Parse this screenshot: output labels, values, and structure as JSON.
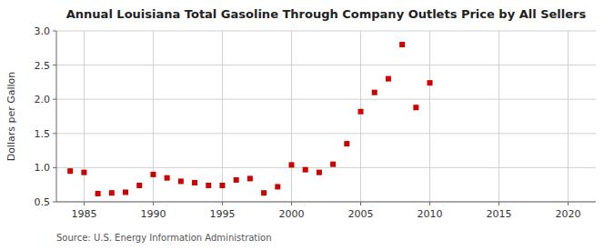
{
  "chart_data": {
    "type": "scatter",
    "title": "Annual Louisiana Total Gasoline Through Company Outlets Price by All Sellers",
    "y_label": "Dollars per Gallon",
    "annotations": [
      "Source: U.S. Energy Information Administration"
    ],
    "x": [
      1984,
      1985,
      1986,
      1987,
      1988,
      1989,
      1990,
      1991,
      1992,
      1993,
      1994,
      1995,
      1996,
      1997,
      1998,
      1999,
      2000,
      2001,
      2002,
      2003,
      2004,
      2005,
      2006,
      2007,
      2008,
      2009,
      2010
    ],
    "values": [
      0.95,
      0.93,
      0.62,
      0.63,
      0.64,
      0.74,
      0.9,
      0.85,
      0.8,
      0.78,
      0.74,
      0.74,
      0.82,
      0.84,
      0.63,
      0.72,
      1.04,
      0.97,
      0.93,
      1.05,
      1.35,
      1.82,
      2.1,
      2.3,
      2.8,
      1.88,
      2.24
    ],
    "color": "#cc0000",
    "marker": "square",
    "xlim": [
      1983,
      2022
    ],
    "ylim": [
      0.5,
      3.0
    ],
    "xticks": [
      1985,
      1990,
      1995,
      2000,
      2005,
      2010,
      2015,
      2020
    ],
    "yticks": [
      0.5,
      {
        "value": 1.0,
        "label": "1.0"
      },
      1.5,
      {
        "value": 2.0,
        "label": "2.0"
      },
      2.5,
      {
        "value": 3.0,
        "label": "3.0"
      }
    ],
    "grid": true
  }
}
